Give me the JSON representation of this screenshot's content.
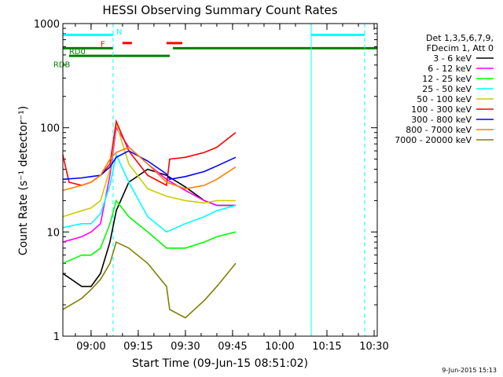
{
  "chart_data": {
    "type": "line",
    "title": "HESSI Observing Summary Count Rates",
    "ylabel": "Count Rate (s⁻¹ detector⁻¹)",
    "xlabel": "Start Time (09-Jun-15 08:51:02)",
    "y_scale": "log",
    "ylim": [
      1,
      1000
    ],
    "y_ticks": [
      {
        "value": 1,
        "label": "1"
      },
      {
        "value": 10,
        "label": "10"
      },
      {
        "value": 100,
        "label": "100"
      },
      {
        "value": 1000,
        "label": "1000"
      }
    ],
    "xlim": [
      "08:51:02",
      "10:31:00"
    ],
    "x_ticks": [
      "09:00",
      "09:15",
      "09:30",
      "09:45",
      "10:00",
      "10:15",
      "10:30"
    ],
    "legend_position": "right",
    "legend_header": [
      "Det 1,3,5,6,7,9,",
      "FDecim 1, Att 0"
    ],
    "series": [
      {
        "name": "3 - 6 keV",
        "color": "#000000",
        "x": [
          "08:51",
          "08:57",
          "09:00",
          "09:03",
          "09:06",
          "09:08",
          "09:12",
          "09:18",
          "09:24",
          "09:30",
          "09:36",
          "09:40",
          "09:46"
        ],
        "y": [
          4,
          3,
          3,
          4,
          8,
          16,
          30,
          40,
          35,
          27,
          20,
          18,
          18
        ]
      },
      {
        "name": "6 - 12 keV",
        "color": "#ff00ff",
        "x": [
          "08:51",
          "08:57",
          "09:00",
          "09:03",
          "09:06",
          "09:08",
          "09:12",
          "09:18",
          "09:24",
          "09:30",
          "09:36",
          "09:40",
          "09:46"
        ],
        "y": [
          8,
          9,
          10,
          12,
          35,
          100,
          65,
          45,
          32,
          25,
          20,
          18,
          18
        ]
      },
      {
        "name": "12 - 25 keV",
        "color": "#00ff00",
        "x": [
          "08:51",
          "08:57",
          "09:00",
          "09:03",
          "09:06",
          "09:08",
          "09:12",
          "09:18",
          "09:24",
          "09:30",
          "09:36",
          "09:40",
          "09:46"
        ],
        "y": [
          5,
          6,
          6,
          7,
          12,
          20,
          14,
          10,
          7,
          7,
          8,
          9,
          10
        ]
      },
      {
        "name": "25 - 50 keV",
        "color": "#00ffff",
        "x": [
          "08:51",
          "08:57",
          "09:00",
          "09:03",
          "09:06",
          "09:08",
          "09:12",
          "09:18",
          "09:24",
          "09:30",
          "09:36",
          "09:40",
          "09:46"
        ],
        "y": [
          11,
          12,
          12,
          15,
          28,
          55,
          30,
          14,
          10,
          12,
          14,
          16,
          18
        ]
      },
      {
        "name": "50 - 100 keV",
        "color": "#cccc00",
        "x": [
          "08:51",
          "08:57",
          "09:00",
          "09:03",
          "09:06",
          "09:08",
          "09:12",
          "09:18",
          "09:24",
          "09:30",
          "09:36",
          "09:40",
          "09:46"
        ],
        "y": [
          14,
          16,
          17,
          20,
          40,
          110,
          45,
          26,
          22,
          20,
          19,
          20,
          20
        ]
      },
      {
        "name": "100 - 300 keV",
        "color": "#ff0000",
        "x": [
          "08:51",
          "08:53",
          "08:57",
          "09:00",
          "09:03",
          "09:06",
          "09:08",
          "09:12",
          "09:18",
          "09:24",
          "09:25",
          "09:30",
          "09:36",
          "09:40",
          "09:46"
        ],
        "y": [
          55,
          30,
          28,
          30,
          35,
          45,
          115,
          60,
          35,
          28,
          50,
          52,
          58,
          65,
          90
        ]
      },
      {
        "name": "300 - 800 keV",
        "color": "#0000ff",
        "x": [
          "08:51",
          "08:57",
          "09:00",
          "09:03",
          "09:06",
          "09:08",
          "09:12",
          "09:18",
          "09:24",
          "09:25",
          "09:30",
          "09:36",
          "09:40",
          "09:46"
        ],
        "y": [
          32,
          33,
          34,
          35,
          42,
          52,
          60,
          48,
          36,
          32,
          34,
          38,
          43,
          52
        ]
      },
      {
        "name": "800 - 7000 keV",
        "color": "#ff8000",
        "x": [
          "08:51",
          "08:57",
          "09:00",
          "09:03",
          "09:06",
          "09:08",
          "09:12",
          "09:18",
          "09:24",
          "09:30",
          "09:36",
          "09:40",
          "09:46"
        ],
        "y": [
          25,
          28,
          30,
          35,
          50,
          58,
          65,
          45,
          30,
          26,
          28,
          32,
          42
        ]
      },
      {
        "name": "7000 - 20000 keV",
        "color": "#808000",
        "x": [
          "08:51",
          "08:57",
          "09:00",
          "09:03",
          "09:06",
          "09:08",
          "09:12",
          "09:18",
          "09:24",
          "09:25",
          "09:30",
          "09:36",
          "09:40",
          "09:46"
        ],
        "y": [
          1.8,
          2.3,
          2.8,
          3.5,
          5,
          8,
          7,
          5,
          3,
          1.8,
          1.5,
          2.2,
          3,
          5
        ]
      }
    ],
    "annotations": [
      {
        "label": "N",
        "color": "#00ffff",
        "x": "09:07"
      },
      {
        "label": "F",
        "color": "#ff0000",
        "x": "09:06"
      },
      {
        "label": "RD0",
        "color": "#008000",
        "x": "08:53"
      },
      {
        "label": "RDB",
        "color": "#008000",
        "x": "08:48"
      }
    ],
    "status_bars": [
      {
        "name": "night",
        "color": "#00ffff",
        "y": 780,
        "segments": [
          [
            "08:51",
            "09:07"
          ],
          [
            "10:10",
            "10:27"
          ]
        ]
      },
      {
        "name": "flare",
        "color": "#ff0000",
        "y": 650,
        "segments": [
          [
            "09:10",
            "09:13"
          ],
          [
            "09:24",
            "09:29"
          ]
        ]
      },
      {
        "name": "rd0",
        "color": "#008000",
        "y": 580,
        "segments": [
          [
            "08:51",
            "09:07"
          ],
          [
            "09:26",
            "10:31"
          ]
        ]
      },
      {
        "name": "rdb",
        "color": "#008000",
        "y": 490,
        "segments": [
          [
            "08:53",
            "09:25"
          ]
        ]
      }
    ],
    "vertical_lines": [
      {
        "x": "09:07",
        "color": "#00ffff",
        "style": "dashed"
      },
      {
        "x": "10:10",
        "color": "#00ffff",
        "style": "solid"
      },
      {
        "x": "10:27",
        "color": "#00ffff",
        "style": "dashed"
      }
    ]
  },
  "footer": {
    "timestamp": "9-Jun-2015 15:13"
  }
}
